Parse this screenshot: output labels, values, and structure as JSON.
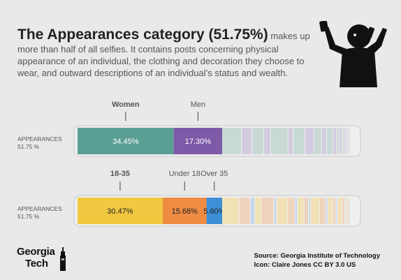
{
  "headline": {
    "big": "The Appearances category (51.75%)",
    "rest": " makes up more than half of all selfies. It contains posts concerning physical appearance of an individual, the clothing and decoration they choose to wear, and outward descriptions of an individual’s status and wealth."
  },
  "icon": "selfie-person-icon",
  "colors": {
    "women": "#5b9e94",
    "men": "#7f5aa8",
    "age_18_35": "#f1c83f",
    "under_18": "#ef8c44",
    "over_35": "#3d8fd6",
    "track": "#e9e9e9"
  },
  "chart_data": [
    {
      "type": "bar",
      "orientation": "stacked-horizontal",
      "row_label": "APPEARANCES",
      "row_sublabel": "51.75 %",
      "segments": [
        {
          "name": "Women",
          "value": 34.45,
          "label": "34.45%",
          "color": "#5b9e94"
        },
        {
          "name": "Men",
          "value": 17.3,
          "label": "17.30%",
          "color": "#7f5aa8"
        }
      ],
      "faded_segments": [
        {
          "value": 7.0,
          "color": "#c9d9d6"
        },
        {
          "value": 3.8,
          "color": "#d3cbe0"
        },
        {
          "value": 4.2,
          "color": "#c9d9d6"
        },
        {
          "value": 2.4,
          "color": "#d3cbe0"
        },
        {
          "value": 6.3,
          "color": "#c9d9d6"
        },
        {
          "value": 1.8,
          "color": "#d3cbe0"
        },
        {
          "value": 4.2,
          "color": "#c9d9d6"
        },
        {
          "value": 3.2,
          "color": "#d3cbe0"
        },
        {
          "value": 2.8,
          "color": "#c9d9d6"
        },
        {
          "value": 1.7,
          "color": "#d3cbe0"
        },
        {
          "value": 2.4,
          "color": "#c9d9d6"
        },
        {
          "value": 1.3,
          "color": "#d3cbe0"
        },
        {
          "value": 1.0,
          "color": "#c9d9d6"
        },
        {
          "value": 0.9,
          "color": "#d3cbe0"
        },
        {
          "value": 0.7,
          "color": "#c9d9d6"
        },
        {
          "value": 0.6,
          "color": "#d3cbe0"
        },
        {
          "value": 0.5,
          "color": "#c9d9d6"
        },
        {
          "value": 0.4,
          "color": "#d3cbe0"
        },
        {
          "value": 0.4,
          "color": "#c9d9d6"
        },
        {
          "value": 0.35,
          "color": "#d3cbe0"
        }
      ],
      "total": 100
    },
    {
      "type": "bar",
      "orientation": "stacked-horizontal",
      "row_label": "APPEARANCES",
      "row_sublabel": "51.75 %",
      "segments": [
        {
          "name": "18-35",
          "value": 30.47,
          "label": "30.47%",
          "color": "#f1c83f"
        },
        {
          "name": "Under 18",
          "value": 15.68,
          "label": "15.68%",
          "color": "#ef8c44"
        },
        {
          "name": "Over 35",
          "value": 5.6,
          "label": "5.60%",
          "color": "#3d8fd6"
        }
      ],
      "faded_segments": [
        {
          "value": 6.2,
          "color": "#f1e2b6"
        },
        {
          "value": 4.0,
          "color": "#efd4bd"
        },
        {
          "value": 1.6,
          "color": "#c7d8ea"
        },
        {
          "value": 2.2,
          "color": "#f1e2b6"
        },
        {
          "value": 4.6,
          "color": "#efd4bd"
        },
        {
          "value": 1.0,
          "color": "#c7d8ea"
        },
        {
          "value": 3.9,
          "color": "#f1e2b6"
        },
        {
          "value": 2.6,
          "color": "#efd4bd"
        },
        {
          "value": 0.9,
          "color": "#c7d8ea"
        },
        {
          "value": 2.4,
          "color": "#f1e2b6"
        },
        {
          "value": 1.6,
          "color": "#efd4bd"
        },
        {
          "value": 0.7,
          "color": "#c7d8ea"
        },
        {
          "value": 3.3,
          "color": "#f1e2b6"
        },
        {
          "value": 2.1,
          "color": "#efd4bd"
        },
        {
          "value": 0.8,
          "color": "#c7d8ea"
        },
        {
          "value": 1.8,
          "color": "#f1e2b6"
        },
        {
          "value": 1.2,
          "color": "#efd4bd"
        },
        {
          "value": 0.5,
          "color": "#c7d8ea"
        },
        {
          "value": 1.6,
          "color": "#f1e2b6"
        },
        {
          "value": 1.0,
          "color": "#efd4bd"
        },
        {
          "value": 0.4,
          "color": "#c7d8ea"
        },
        {
          "value": 0.6,
          "color": "#f1e2b6"
        },
        {
          "value": 0.5,
          "color": "#efd4bd"
        },
        {
          "value": 0.35,
          "color": "#c7d8ea"
        }
      ],
      "total": 100
    }
  ],
  "source": {
    "line1": "Source: Georgia Institute of Technology",
    "line2": "Icon: Claire Jones CC BY 3.0 US"
  },
  "logo": {
    "line1": "Georgia",
    "line2": "Tech"
  }
}
